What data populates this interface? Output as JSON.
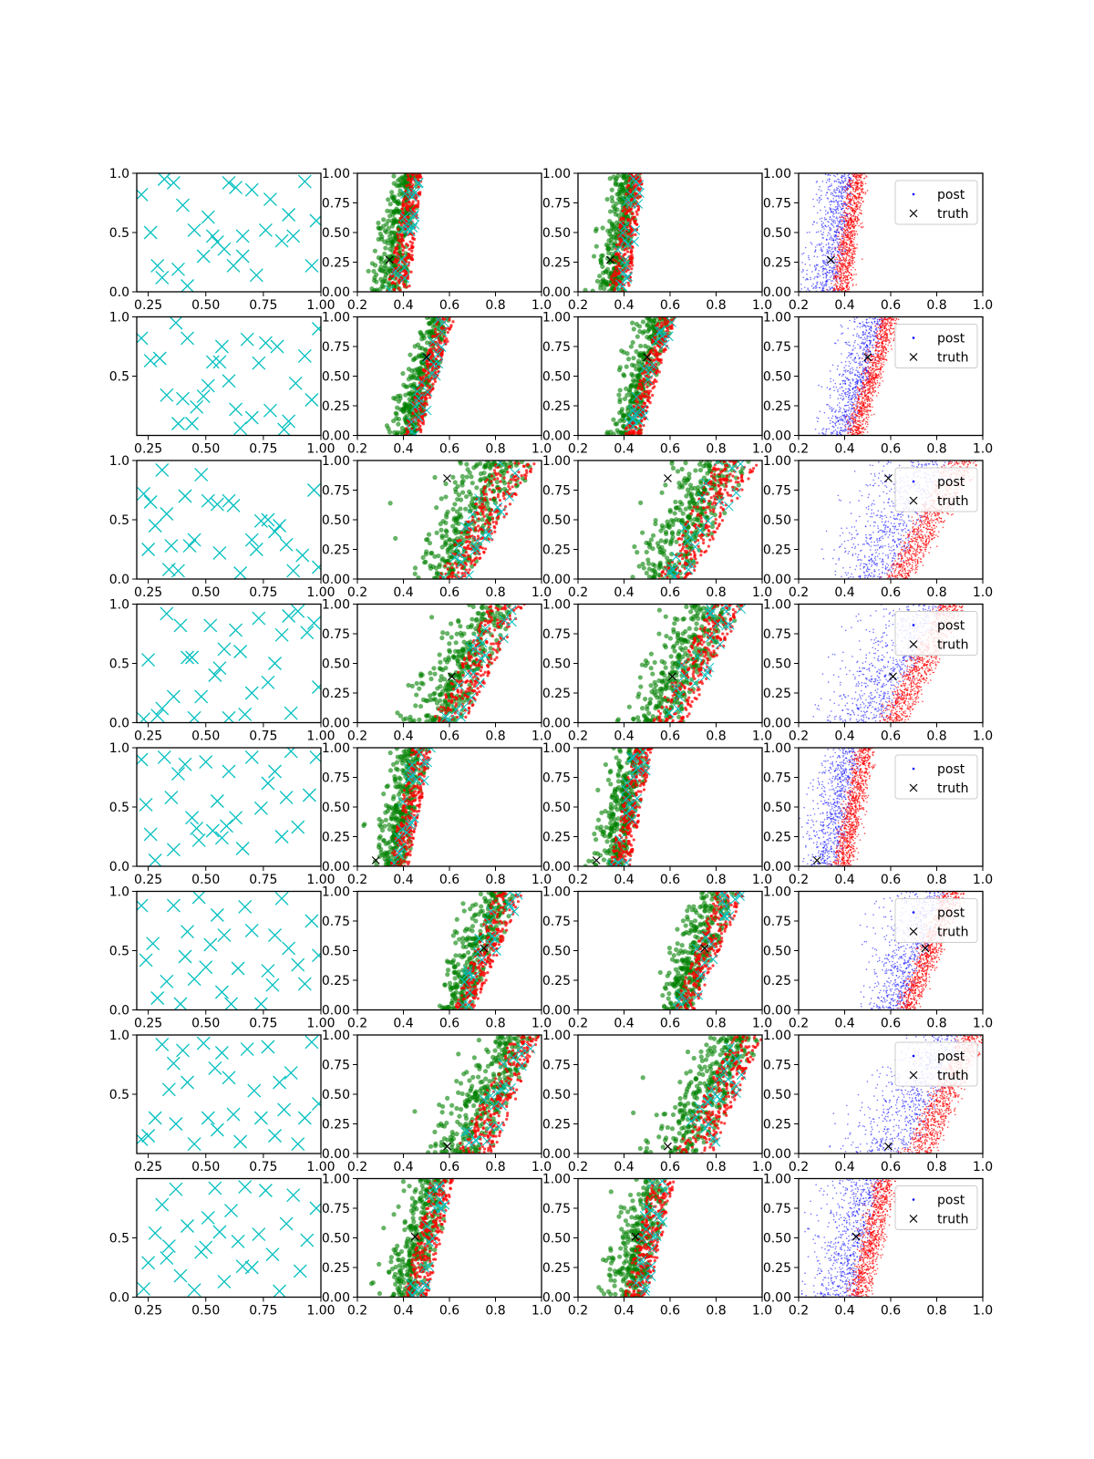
{
  "figure": {
    "rows": 8,
    "cols": 4,
    "description_free": true
  },
  "legend": {
    "entries": [
      {
        "label": "post",
        "marker": "dot",
        "color": "#0000ff"
      },
      {
        "label": "truth",
        "marker": "x",
        "color": "#000000"
      }
    ]
  },
  "colors": {
    "obs": "#00bfbf",
    "post_blue": "#0000ff",
    "post_red": "#ff0000",
    "green": "#008000",
    "truth": "#000000"
  },
  "chart_data": {
    "type": "scatter",
    "grid": false,
    "column_axes": [
      {
        "xlim": [
          0.2,
          1.0
        ],
        "xticks": [
          "0.25",
          "0.50",
          "0.75",
          "1.00"
        ],
        "xtick_values": [
          0.25,
          0.5,
          0.75,
          1.0
        ],
        "ylim": [
          0.0,
          1.0
        ],
        "yticks": [
          "0.0",
          "0.5",
          "1.0"
        ],
        "ytick_values": [
          0.0,
          0.5,
          1.0
        ]
      },
      {
        "xlim": [
          0.2,
          1.0
        ],
        "xticks": [
          "0.2",
          "0.4",
          "0.6",
          "0.8",
          "1.0"
        ],
        "xtick_values": [
          0.2,
          0.4,
          0.6,
          0.8,
          1.0
        ],
        "ylim": [
          0.0,
          1.0
        ],
        "yticks": [
          "0.00",
          "0.25",
          "0.50",
          "0.75",
          "1.00"
        ],
        "ytick_values": [
          0.0,
          0.25,
          0.5,
          0.75,
          1.0
        ]
      },
      {
        "xlim": [
          0.2,
          1.0
        ],
        "xticks": [
          "0.2",
          "0.4",
          "0.6",
          "0.8",
          "1.0"
        ],
        "xtick_values": [
          0.2,
          0.4,
          0.6,
          0.8,
          1.0
        ],
        "ylim": [
          0.0,
          1.0
        ],
        "yticks": [
          "0.00",
          "0.25",
          "0.50",
          "0.75",
          "1.00"
        ],
        "ytick_values": [
          0.0,
          0.25,
          0.5,
          0.75,
          1.0
        ]
      },
      {
        "xlim": [
          0.2,
          1.0
        ],
        "xticks": [
          "0.2",
          "0.4",
          "0.6",
          "0.8",
          "1.0"
        ],
        "xtick_values": [
          0.2,
          0.4,
          0.6,
          0.8,
          1.0
        ],
        "ylim": [
          0.0,
          1.0
        ],
        "yticks": [
          "0.00",
          "0.25",
          "0.50",
          "0.75",
          "1.00"
        ],
        "ytick_values": [
          0.0,
          0.25,
          0.5,
          0.75,
          1.0
        ]
      }
    ],
    "row_first_col_yticks": [
      {
        "labels": [
          "0.0",
          "0.5",
          "1.0"
        ],
        "values": [
          0.0,
          0.5,
          1.0
        ]
      },
      {
        "labels": [
          "0.5",
          "1.0"
        ],
        "values": [
          0.5,
          1.0
        ]
      },
      {
        "labels": [
          "0.0",
          "0.5",
          "1.0"
        ],
        "values": [
          0.0,
          0.5,
          1.0
        ]
      },
      {
        "labels": [
          "0.0",
          "0.5",
          "1.0"
        ],
        "values": [
          0.0,
          0.5,
          1.0
        ]
      },
      {
        "labels": [
          "0.0",
          "0.5",
          "1.0"
        ],
        "values": [
          0.0,
          0.5,
          1.0
        ]
      },
      {
        "labels": [
          "0.0",
          "0.5",
          "1.0"
        ],
        "values": [
          0.0,
          0.5,
          1.0
        ]
      },
      {
        "labels": [
          "0.5",
          "1.0"
        ],
        "values": [
          0.5,
          1.0
        ]
      },
      {
        "labels": [
          "0.0",
          "0.5"
        ],
        "values": [
          0.0,
          0.5
        ]
      }
    ],
    "truth": [
      {
        "x": 0.34,
        "y": 0.27
      },
      {
        "x": 0.5,
        "y": 0.66
      },
      {
        "x": 0.59,
        "y": 0.85
      },
      {
        "x": 0.61,
        "y": 0.39
      },
      {
        "x": 0.28,
        "y": 0.05
      },
      {
        "x": 0.75,
        "y": 0.52
      },
      {
        "x": 0.59,
        "y": 0.06
      },
      {
        "x": 0.45,
        "y": 0.51
      }
    ],
    "band": [
      {
        "left_bottom": 0.33,
        "left_top": 0.42,
        "right_bottom": 0.42,
        "right_top": 0.48
      },
      {
        "left_bottom": 0.4,
        "left_top": 0.55,
        "right_bottom": 0.47,
        "right_top": 0.62
      },
      {
        "left_bottom": 0.55,
        "left_top": 0.8,
        "right_bottom": 0.68,
        "right_top": 0.98
      },
      {
        "left_bottom": 0.52,
        "left_top": 0.78,
        "right_bottom": 0.66,
        "right_top": 0.92
      },
      {
        "left_bottom": 0.34,
        "left_top": 0.44,
        "right_bottom": 0.42,
        "right_top": 0.52
      },
      {
        "left_bottom": 0.62,
        "left_top": 0.8,
        "right_bottom": 0.7,
        "right_top": 0.92
      },
      {
        "left_bottom": 0.62,
        "left_top": 0.88,
        "right_bottom": 0.78,
        "right_top": 1.0
      },
      {
        "left_bottom": 0.4,
        "left_top": 0.52,
        "right_bottom": 0.5,
        "right_top": 0.62
      }
    ],
    "obs_points": [
      [
        [
          0.22,
          0.82
        ],
        [
          0.26,
          0.5
        ],
        [
          0.29,
          0.22
        ],
        [
          0.32,
          0.95
        ],
        [
          0.36,
          0.92
        ],
        [
          0.38,
          0.19
        ],
        [
          0.42,
          0.05
        ],
        [
          0.49,
          0.3
        ],
        [
          0.51,
          0.63
        ],
        [
          0.53,
          0.47
        ],
        [
          0.58,
          0.36
        ],
        [
          0.6,
          0.92
        ],
        [
          0.62,
          0.22
        ],
        [
          0.63,
          0.88
        ],
        [
          0.66,
          0.3
        ],
        [
          0.7,
          0.86
        ],
        [
          0.76,
          0.52
        ],
        [
          0.78,
          0.78
        ],
        [
          0.83,
          0.43
        ],
        [
          0.88,
          0.47
        ],
        [
          0.93,
          0.93
        ],
        [
          0.96,
          0.22
        ],
        [
          0.98,
          0.6
        ],
        [
          0.4,
          0.73
        ],
        [
          0.55,
          0.42
        ],
        [
          0.72,
          0.14
        ],
        [
          0.86,
          0.65
        ],
        [
          0.31,
          0.12
        ],
        [
          0.45,
          0.52
        ],
        [
          0.66,
          0.47
        ]
      ],
      [
        [
          0.22,
          0.82
        ],
        [
          0.26,
          0.63
        ],
        [
          0.3,
          0.65
        ],
        [
          0.33,
          0.34
        ],
        [
          0.37,
          0.95
        ],
        [
          0.4,
          0.31
        ],
        [
          0.42,
          0.82
        ],
        [
          0.44,
          0.1
        ],
        [
          0.49,
          0.33
        ],
        [
          0.51,
          0.42
        ],
        [
          0.53,
          0.62
        ],
        [
          0.56,
          0.62
        ],
        [
          0.6,
          0.46
        ],
        [
          0.63,
          0.22
        ],
        [
          0.65,
          0.06
        ],
        [
          0.68,
          0.81
        ],
        [
          0.73,
          0.61
        ],
        [
          0.76,
          0.78
        ],
        [
          0.78,
          0.21
        ],
        [
          0.81,
          0.75
        ],
        [
          0.86,
          0.12
        ],
        [
          0.89,
          0.44
        ],
        [
          0.93,
          0.67
        ],
        [
          0.96,
          0.3
        ],
        [
          0.99,
          0.9
        ],
        [
          0.38,
          0.1
        ],
        [
          0.57,
          0.75
        ],
        [
          0.7,
          0.15
        ],
        [
          0.46,
          0.24
        ],
        [
          0.84,
          0.05
        ]
      ],
      [
        [
          0.23,
          0.72
        ],
        [
          0.25,
          0.25
        ],
        [
          0.28,
          0.45
        ],
        [
          0.31,
          0.92
        ],
        [
          0.33,
          0.55
        ],
        [
          0.35,
          0.28
        ],
        [
          0.38,
          0.07
        ],
        [
          0.41,
          0.7
        ],
        [
          0.45,
          0.33
        ],
        [
          0.48,
          0.88
        ],
        [
          0.51,
          0.66
        ],
        [
          0.56,
          0.22
        ],
        [
          0.6,
          0.66
        ],
        [
          0.65,
          0.05
        ],
        [
          0.7,
          0.33
        ],
        [
          0.74,
          0.49
        ],
        [
          0.77,
          0.5
        ],
        [
          0.8,
          0.4
        ],
        [
          0.85,
          0.29
        ],
        [
          0.88,
          0.07
        ],
        [
          0.92,
          0.2
        ],
        [
          0.97,
          0.75
        ],
        [
          0.99,
          0.1
        ],
        [
          0.26,
          0.65
        ],
        [
          0.43,
          0.28
        ],
        [
          0.62,
          0.62
        ],
        [
          0.82,
          0.45
        ],
        [
          0.34,
          0.08
        ],
        [
          0.55,
          0.63
        ],
        [
          0.72,
          0.25
        ]
      ],
      [
        [
          0.23,
          0.03
        ],
        [
          0.25,
          0.53
        ],
        [
          0.29,
          0.06
        ],
        [
          0.33,
          0.92
        ],
        [
          0.36,
          0.22
        ],
        [
          0.39,
          0.82
        ],
        [
          0.42,
          0.55
        ],
        [
          0.45,
          0.04
        ],
        [
          0.48,
          0.22
        ],
        [
          0.52,
          0.82
        ],
        [
          0.54,
          0.4
        ],
        [
          0.58,
          0.62
        ],
        [
          0.6,
          0.04
        ],
        [
          0.63,
          0.78
        ],
        [
          0.67,
          0.07
        ],
        [
          0.7,
          0.25
        ],
        [
          0.73,
          0.88
        ],
        [
          0.77,
          0.34
        ],
        [
          0.8,
          0.5
        ],
        [
          0.83,
          0.74
        ],
        [
          0.87,
          0.08
        ],
        [
          0.9,
          0.94
        ],
        [
          0.94,
          0.76
        ],
        [
          0.97,
          0.84
        ],
        [
          0.99,
          0.3
        ],
        [
          0.31,
          0.12
        ],
        [
          0.44,
          0.55
        ],
        [
          0.56,
          0.46
        ],
        [
          0.86,
          0.9
        ],
        [
          0.65,
          0.6
        ]
      ],
      [
        [
          0.22,
          0.9
        ],
        [
          0.24,
          0.52
        ],
        [
          0.26,
          0.27
        ],
        [
          0.28,
          0.05
        ],
        [
          0.32,
          0.92
        ],
        [
          0.35,
          0.58
        ],
        [
          0.38,
          0.78
        ],
        [
          0.41,
          0.86
        ],
        [
          0.44,
          0.41
        ],
        [
          0.47,
          0.22
        ],
        [
          0.5,
          0.88
        ],
        [
          0.53,
          0.3
        ],
        [
          0.55,
          0.55
        ],
        [
          0.57,
          0.24
        ],
        [
          0.6,
          0.8
        ],
        [
          0.63,
          0.41
        ],
        [
          0.66,
          0.15
        ],
        [
          0.7,
          0.92
        ],
        [
          0.74,
          0.49
        ],
        [
          0.77,
          0.7
        ],
        [
          0.8,
          0.8
        ],
        [
          0.83,
          0.25
        ],
        [
          0.87,
          0.97
        ],
        [
          0.9,
          0.33
        ],
        [
          0.95,
          0.6
        ],
        [
          0.98,
          0.92
        ],
        [
          0.36,
          0.14
        ],
        [
          0.59,
          0.34
        ],
        [
          0.85,
          0.58
        ],
        [
          0.46,
          0.32
        ]
      ],
      [
        [
          0.22,
          0.88
        ],
        [
          0.24,
          0.42
        ],
        [
          0.27,
          0.56
        ],
        [
          0.29,
          0.1
        ],
        [
          0.33,
          0.24
        ],
        [
          0.36,
          0.88
        ],
        [
          0.39,
          0.05
        ],
        [
          0.42,
          0.66
        ],
        [
          0.45,
          0.26
        ],
        [
          0.47,
          0.95
        ],
        [
          0.5,
          0.36
        ],
        [
          0.52,
          0.55
        ],
        [
          0.55,
          0.8
        ],
        [
          0.58,
          0.63
        ],
        [
          0.61,
          0.05
        ],
        [
          0.64,
          0.35
        ],
        [
          0.67,
          0.87
        ],
        [
          0.7,
          0.67
        ],
        [
          0.74,
          0.05
        ],
        [
          0.77,
          0.33
        ],
        [
          0.8,
          0.63
        ],
        [
          0.83,
          0.94
        ],
        [
          0.86,
          0.52
        ],
        [
          0.9,
          0.38
        ],
        [
          0.93,
          0.22
        ],
        [
          0.96,
          0.75
        ],
        [
          0.99,
          0.46
        ],
        [
          0.41,
          0.45
        ],
        [
          0.57,
          0.15
        ],
        [
          0.79,
          0.21
        ]
      ],
      [
        [
          0.22,
          0.12
        ],
        [
          0.25,
          0.15
        ],
        [
          0.28,
          0.3
        ],
        [
          0.31,
          0.92
        ],
        [
          0.34,
          0.54
        ],
        [
          0.37,
          0.25
        ],
        [
          0.4,
          0.87
        ],
        [
          0.42,
          0.6
        ],
        [
          0.45,
          0.08
        ],
        [
          0.49,
          0.93
        ],
        [
          0.51,
          0.3
        ],
        [
          0.54,
          0.72
        ],
        [
          0.57,
          0.85
        ],
        [
          0.6,
          0.64
        ],
        [
          0.62,
          0.33
        ],
        [
          0.65,
          0.1
        ],
        [
          0.68,
          0.88
        ],
        [
          0.71,
          0.53
        ],
        [
          0.74,
          0.3
        ],
        [
          0.77,
          0.9
        ],
        [
          0.8,
          0.15
        ],
        [
          0.84,
          0.37
        ],
        [
          0.87,
          0.68
        ],
        [
          0.9,
          0.08
        ],
        [
          0.93,
          0.3
        ],
        [
          0.96,
          0.94
        ],
        [
          0.99,
          0.42
        ],
        [
          0.36,
          0.76
        ],
        [
          0.55,
          0.2
        ],
        [
          0.82,
          0.6
        ]
      ],
      [
        [
          0.23,
          0.07
        ],
        [
          0.25,
          0.29
        ],
        [
          0.28,
          0.54
        ],
        [
          0.31,
          0.78
        ],
        [
          0.34,
          0.43
        ],
        [
          0.37,
          0.91
        ],
        [
          0.39,
          0.18
        ],
        [
          0.42,
          0.6
        ],
        [
          0.45,
          0.06
        ],
        [
          0.48,
          0.38
        ],
        [
          0.51,
          0.67
        ],
        [
          0.54,
          0.92
        ],
        [
          0.56,
          0.55
        ],
        [
          0.58,
          0.13
        ],
        [
          0.61,
          0.73
        ],
        [
          0.64,
          0.47
        ],
        [
          0.67,
          0.93
        ],
        [
          0.7,
          0.25
        ],
        [
          0.73,
          0.53
        ],
        [
          0.76,
          0.9
        ],
        [
          0.79,
          0.36
        ],
        [
          0.82,
          0.05
        ],
        [
          0.85,
          0.62
        ],
        [
          0.88,
          0.86
        ],
        [
          0.91,
          0.22
        ],
        [
          0.94,
          0.48
        ],
        [
          0.98,
          0.75
        ],
        [
          0.33,
          0.33
        ],
        [
          0.5,
          0.42
        ],
        [
          0.66,
          0.26
        ]
      ]
    ]
  }
}
